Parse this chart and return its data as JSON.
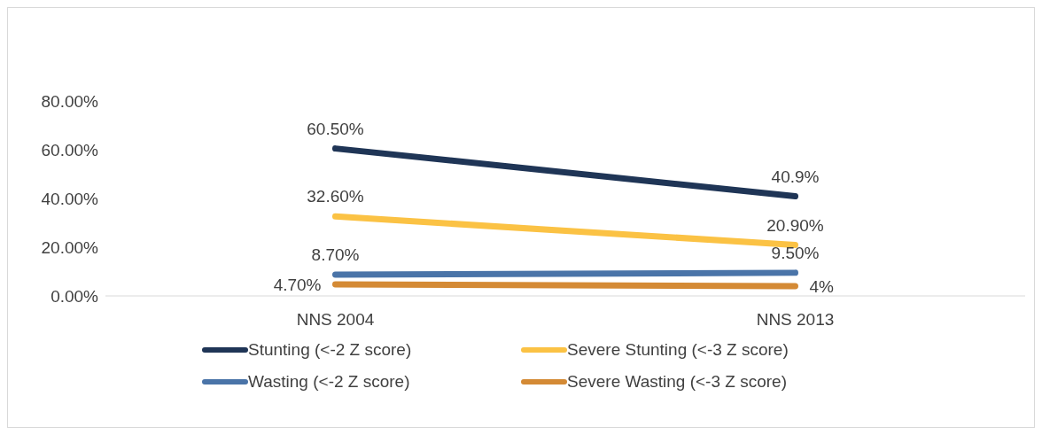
{
  "chart_data": {
    "type": "line",
    "categories": [
      "NNS 2004",
      "NNS 2013"
    ],
    "series": [
      {
        "name": "Stunting (<-2 Z score)",
        "color": "#1f3556",
        "values": [
          60.5,
          40.9
        ],
        "value_labels": [
          "60.50%",
          "40.9%"
        ]
      },
      {
        "name": "Severe Stunting (<-3 Z score)",
        "color": "#fbc244",
        "values": [
          32.6,
          20.9
        ],
        "value_labels": [
          "32.60%",
          "20.90%"
        ]
      },
      {
        "name": "Wasting (<-2 Z score)",
        "color": "#4a74a8",
        "values": [
          8.7,
          9.5
        ],
        "value_labels": [
          "8.70%",
          "9.50%"
        ]
      },
      {
        "name": "Severe Wasting (<-3 Z score)",
        "color": "#d48a35",
        "values": [
          4.7,
          4
        ],
        "value_labels": [
          "4.70%",
          "4%"
        ]
      }
    ],
    "ylim": [
      0,
      80
    ],
    "yticks": [
      {
        "value": 0,
        "label": "0.00%"
      },
      {
        "value": 20,
        "label": "20.00%"
      },
      {
        "value": 40,
        "label": "40.00%"
      },
      {
        "value": 60,
        "label": "60.00%"
      },
      {
        "value": 80,
        "label": "80.00%"
      }
    ],
    "grid": false,
    "legend": "bottom"
  }
}
